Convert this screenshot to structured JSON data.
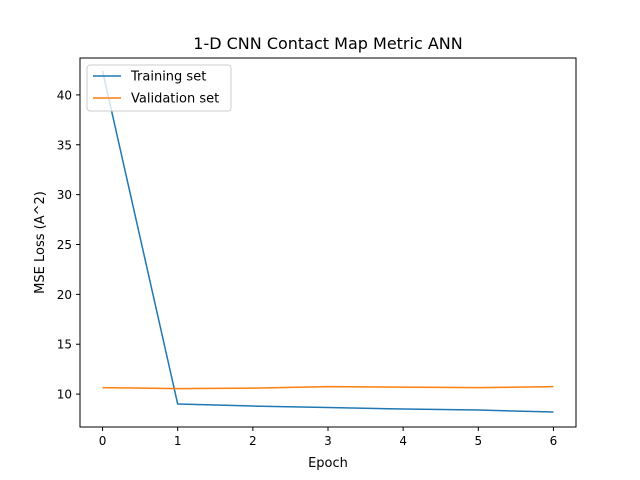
{
  "chart_data": {
    "type": "line",
    "title": "1-D CNN Contact Map Metric ANN",
    "xlabel": "Epoch",
    "ylabel": "MSE Loss (A^2)",
    "x": [
      0,
      1,
      2,
      3,
      4,
      5,
      6
    ],
    "xlim": [
      -0.3,
      6.3
    ],
    "ylim": [
      6.7,
      43.7
    ],
    "xticks": [
      0,
      1,
      2,
      3,
      4,
      5,
      6
    ],
    "yticks": [
      10,
      15,
      20,
      25,
      30,
      35,
      40
    ],
    "grid": false,
    "legend": {
      "position": "upper-left"
    },
    "series": [
      {
        "name": "Training set",
        "color": "#1f77b4",
        "values": [
          42.4,
          9.0,
          8.8,
          8.65,
          8.5,
          8.4,
          8.2
        ]
      },
      {
        "name": "Validation set",
        "color": "#ff7f0e",
        "values": [
          10.65,
          10.55,
          10.6,
          10.75,
          10.7,
          10.65,
          10.75
        ]
      }
    ]
  }
}
